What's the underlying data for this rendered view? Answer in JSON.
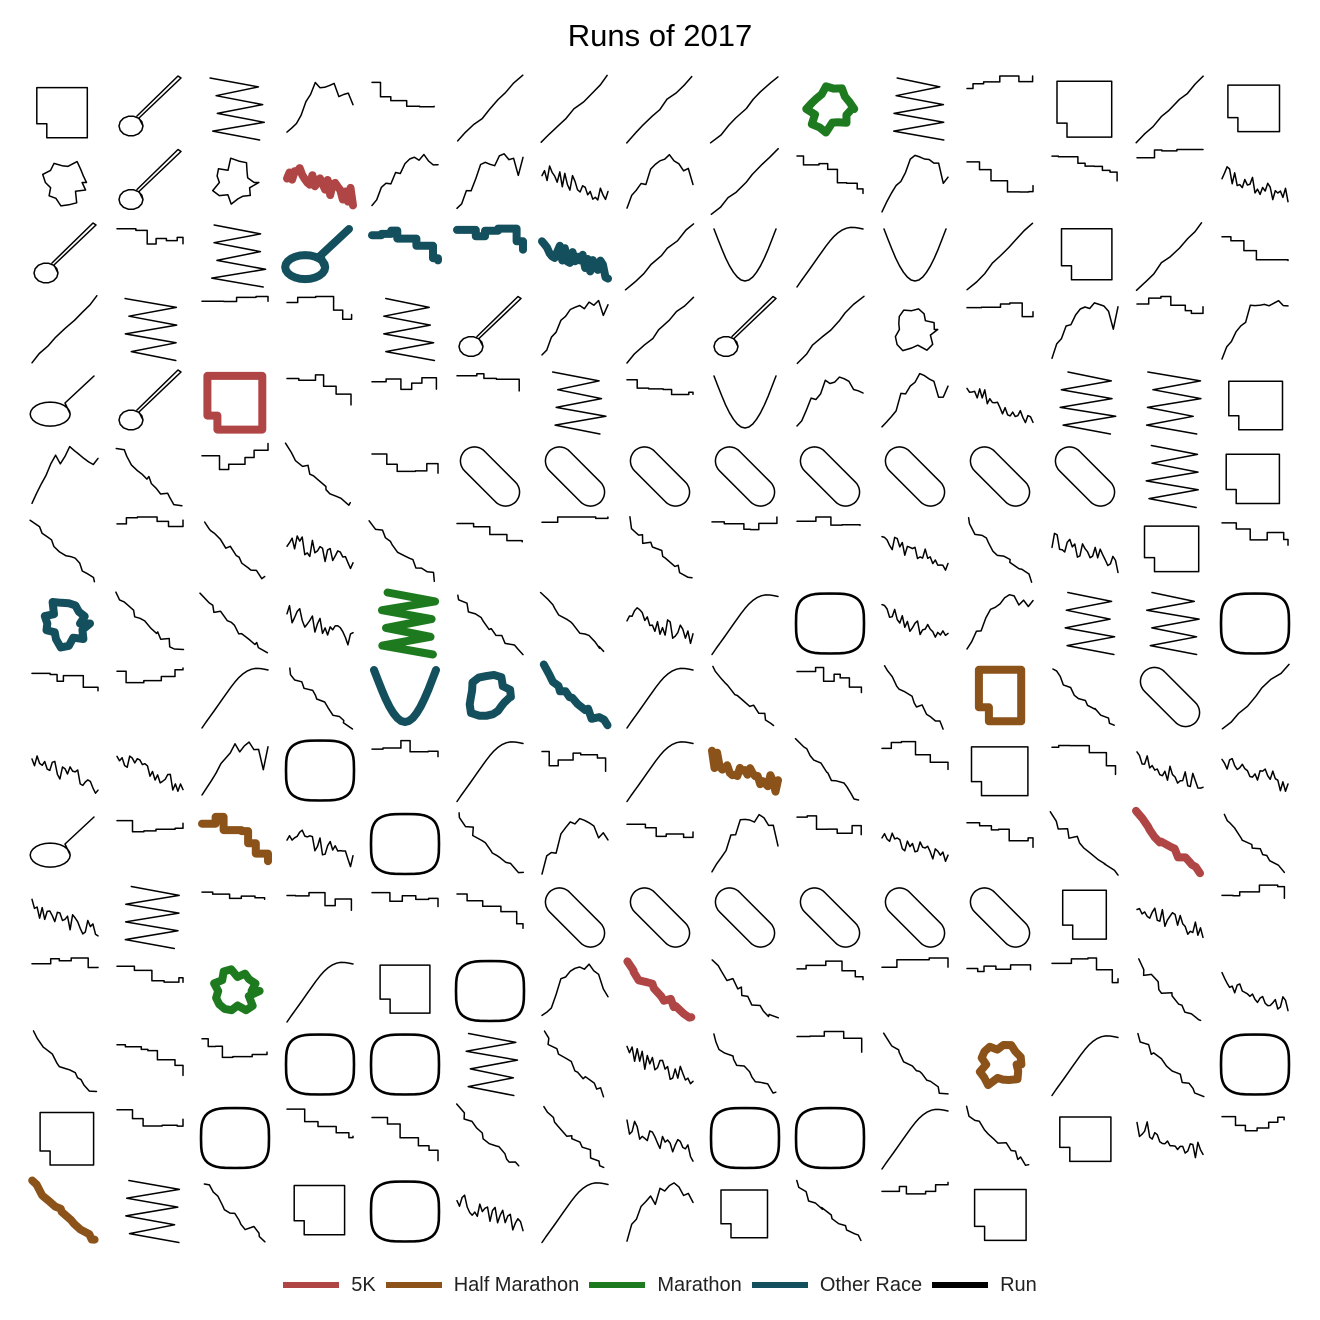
{
  "chart_data": {
    "type": "small-multiples",
    "title": "Runs of 2017",
    "grid": false,
    "legend_position": "bottom",
    "legend": [
      {
        "name": "5K",
        "color": "#b04545"
      },
      {
        "name": "Half Marathon",
        "color": "#8b5219"
      },
      {
        "name": "Marathon",
        "color": "#1e7a1e"
      },
      {
        "name": "Other Race",
        "color": "#134f5c"
      },
      {
        "name": "Run",
        "color": "#000000"
      }
    ],
    "columns": 15,
    "rows": 16,
    "runs": [
      {
        "category": "Run",
        "shape": "box"
      },
      {
        "category": "Run",
        "shape": "lollipop"
      },
      {
        "category": "Run",
        "shape": "zigzag"
      },
      {
        "category": "Run",
        "shape": "hill"
      },
      {
        "category": "Run",
        "shape": "stairs"
      },
      {
        "category": "Run",
        "shape": "line"
      },
      {
        "category": "Run",
        "shape": "line"
      },
      {
        "category": "Run",
        "shape": "line"
      },
      {
        "category": "Run",
        "shape": "line"
      },
      {
        "category": "Marathon",
        "shape": "blob"
      },
      {
        "category": "Run",
        "shape": "zigzag"
      },
      {
        "category": "Run",
        "shape": "stairs"
      },
      {
        "category": "Run",
        "shape": "box"
      },
      {
        "category": "Run",
        "shape": "line"
      },
      {
        "category": "Run",
        "shape": "box"
      },
      {
        "category": "Run",
        "shape": "blob"
      },
      {
        "category": "Run",
        "shape": "lollipop"
      },
      {
        "category": "Run",
        "shape": "blob"
      },
      {
        "category": "5K",
        "shape": "wiggle"
      },
      {
        "category": "Run",
        "shape": "hill"
      },
      {
        "category": "Run",
        "shape": "hill"
      },
      {
        "category": "Run",
        "shape": "wiggle"
      },
      {
        "category": "Run",
        "shape": "hill"
      },
      {
        "category": "Run",
        "shape": "line"
      },
      {
        "category": "Run",
        "shape": "stairs"
      },
      {
        "category": "Run",
        "shape": "hill"
      },
      {
        "category": "Run",
        "shape": "stairs"
      },
      {
        "category": "Run",
        "shape": "stairs"
      },
      {
        "category": "Run",
        "shape": "stairs"
      },
      {
        "category": "Run",
        "shape": "wiggle"
      },
      {
        "category": "Run",
        "shape": "lollipop"
      },
      {
        "category": "Run",
        "shape": "stairs"
      },
      {
        "category": "Run",
        "shape": "zigzag"
      },
      {
        "category": "Other Race",
        "shape": "loop"
      },
      {
        "category": "Other Race",
        "shape": "stairs"
      },
      {
        "category": "Other Race",
        "shape": "stairs"
      },
      {
        "category": "Other Race",
        "shape": "wiggle"
      },
      {
        "category": "Run",
        "shape": "line"
      },
      {
        "category": "Run",
        "shape": "arc"
      },
      {
        "category": "Run",
        "shape": "curve"
      },
      {
        "category": "Run",
        "shape": "arc"
      },
      {
        "category": "Run",
        "shape": "line"
      },
      {
        "category": "Run",
        "shape": "box"
      },
      {
        "category": "Run",
        "shape": "line"
      },
      {
        "category": "Run",
        "shape": "stairs"
      },
      {
        "category": "Run",
        "shape": "line"
      },
      {
        "category": "Run",
        "shape": "zigzag"
      },
      {
        "category": "Run",
        "shape": "stairs"
      },
      {
        "category": "Run",
        "shape": "stairs"
      },
      {
        "category": "Run",
        "shape": "zigzag"
      },
      {
        "category": "Run",
        "shape": "lollipop"
      },
      {
        "category": "Run",
        "shape": "hill"
      },
      {
        "category": "Run",
        "shape": "line"
      },
      {
        "category": "Run",
        "shape": "lollipop"
      },
      {
        "category": "Run",
        "shape": "line"
      },
      {
        "category": "Run",
        "shape": "blob"
      },
      {
        "category": "Run",
        "shape": "stairs"
      },
      {
        "category": "Run",
        "shape": "hill"
      },
      {
        "category": "Run",
        "shape": "stairs"
      },
      {
        "category": "Run",
        "shape": "hill"
      },
      {
        "category": "Run",
        "shape": "loop"
      },
      {
        "category": "Run",
        "shape": "lollipop"
      },
      {
        "category": "5K",
        "shape": "box"
      },
      {
        "category": "Run",
        "shape": "stairs"
      },
      {
        "category": "Run",
        "shape": "stairs"
      },
      {
        "category": "Run",
        "shape": "stairs"
      },
      {
        "category": "Run",
        "shape": "zigzag"
      },
      {
        "category": "Run",
        "shape": "stairs"
      },
      {
        "category": "Run",
        "shape": "arc"
      },
      {
        "category": "Run",
        "shape": "hill"
      },
      {
        "category": "Run",
        "shape": "hill"
      },
      {
        "category": "Run",
        "shape": "wiggle"
      },
      {
        "category": "Run",
        "shape": "zigzag"
      },
      {
        "category": "Run",
        "shape": "zigzag"
      },
      {
        "category": "Run",
        "shape": "box"
      },
      {
        "category": "Run",
        "shape": "hill"
      },
      {
        "category": "Run",
        "shape": "descent"
      },
      {
        "category": "Run",
        "shape": "stairs"
      },
      {
        "category": "Run",
        "shape": "descent"
      },
      {
        "category": "Run",
        "shape": "stairs"
      },
      {
        "category": "Run",
        "shape": "stadium"
      },
      {
        "category": "Run",
        "shape": "stadium"
      },
      {
        "category": "Run",
        "shape": "stadium"
      },
      {
        "category": "Run",
        "shape": "stadium"
      },
      {
        "category": "Run",
        "shape": "stadium"
      },
      {
        "category": "Run",
        "shape": "stadium"
      },
      {
        "category": "Run",
        "shape": "stadium"
      },
      {
        "category": "Run",
        "shape": "stadium"
      },
      {
        "category": "Run",
        "shape": "zigzag"
      },
      {
        "category": "Run",
        "shape": "box"
      },
      {
        "category": "Run",
        "shape": "descent"
      },
      {
        "category": "Run",
        "shape": "stairs"
      },
      {
        "category": "Run",
        "shape": "descent"
      },
      {
        "category": "Run",
        "shape": "wiggle"
      },
      {
        "category": "Run",
        "shape": "descent"
      },
      {
        "category": "Run",
        "shape": "stairs"
      },
      {
        "category": "Run",
        "shape": "stairs"
      },
      {
        "category": "Run",
        "shape": "descent"
      },
      {
        "category": "Run",
        "shape": "stairs"
      },
      {
        "category": "Run",
        "shape": "stairs"
      },
      {
        "category": "Run",
        "shape": "wiggle"
      },
      {
        "category": "Run",
        "shape": "descent"
      },
      {
        "category": "Run",
        "shape": "wiggle"
      },
      {
        "category": "Run",
        "shape": "box"
      },
      {
        "category": "Run",
        "shape": "stairs"
      },
      {
        "category": "Other Race",
        "shape": "blob"
      },
      {
        "category": "Run",
        "shape": "descent"
      },
      {
        "category": "Run",
        "shape": "descent"
      },
      {
        "category": "Run",
        "shape": "wiggle"
      },
      {
        "category": "Marathon",
        "shape": "zigzag"
      },
      {
        "category": "Run",
        "shape": "descent"
      },
      {
        "category": "Run",
        "shape": "descent"
      },
      {
        "category": "Run",
        "shape": "wiggle"
      },
      {
        "category": "Run",
        "shape": "curve"
      },
      {
        "category": "Run",
        "shape": "track"
      },
      {
        "category": "Run",
        "shape": "wiggle"
      },
      {
        "category": "Run",
        "shape": "hill"
      },
      {
        "category": "Run",
        "shape": "zigzag"
      },
      {
        "category": "Run",
        "shape": "zigzag"
      },
      {
        "category": "Run",
        "shape": "track"
      },
      {
        "category": "Run",
        "shape": "stairs"
      },
      {
        "category": "Run",
        "shape": "stairs"
      },
      {
        "category": "Run",
        "shape": "curve"
      },
      {
        "category": "Run",
        "shape": "descent"
      },
      {
        "category": "Other Race",
        "shape": "arc"
      },
      {
        "category": "Other Race",
        "shape": "blob"
      },
      {
        "category": "Other Race",
        "shape": "descent"
      },
      {
        "category": "Run",
        "shape": "curve"
      },
      {
        "category": "Run",
        "shape": "descent"
      },
      {
        "category": "Run",
        "shape": "stairs"
      },
      {
        "category": "Run",
        "shape": "descent"
      },
      {
        "category": "Half Marathon",
        "shape": "box"
      },
      {
        "category": "Run",
        "shape": "descent"
      },
      {
        "category": "Run",
        "shape": "stadium"
      },
      {
        "category": "Run",
        "shape": "line"
      },
      {
        "category": "Run",
        "shape": "wiggle"
      },
      {
        "category": "Run",
        "shape": "wiggle"
      },
      {
        "category": "Run",
        "shape": "hill"
      },
      {
        "category": "Run",
        "shape": "track"
      },
      {
        "category": "Run",
        "shape": "stairs"
      },
      {
        "category": "Run",
        "shape": "curve"
      },
      {
        "category": "Run",
        "shape": "stairs"
      },
      {
        "category": "Run",
        "shape": "curve"
      },
      {
        "category": "Half Marathon",
        "shape": "wiggle"
      },
      {
        "category": "Run",
        "shape": "descent"
      },
      {
        "category": "Run",
        "shape": "stairs"
      },
      {
        "category": "Run",
        "shape": "box"
      },
      {
        "category": "Run",
        "shape": "stairs"
      },
      {
        "category": "Run",
        "shape": "wiggle"
      },
      {
        "category": "Run",
        "shape": "wiggle"
      },
      {
        "category": "Run",
        "shape": "loop"
      },
      {
        "category": "Run",
        "shape": "stairs"
      },
      {
        "category": "Half Marathon",
        "shape": "stairs"
      },
      {
        "category": "Run",
        "shape": "wiggle"
      },
      {
        "category": "Run",
        "shape": "track"
      },
      {
        "category": "Run",
        "shape": "descent"
      },
      {
        "category": "Run",
        "shape": "hill"
      },
      {
        "category": "Run",
        "shape": "stairs"
      },
      {
        "category": "Run",
        "shape": "hill"
      },
      {
        "category": "Run",
        "shape": "stairs"
      },
      {
        "category": "Run",
        "shape": "wiggle"
      },
      {
        "category": "Run",
        "shape": "stairs"
      },
      {
        "category": "Run",
        "shape": "descent"
      },
      {
        "category": "5K",
        "shape": "descent"
      },
      {
        "category": "Run",
        "shape": "descent"
      },
      {
        "category": "Run",
        "shape": "wiggle"
      },
      {
        "category": "Run",
        "shape": "zigzag"
      },
      {
        "category": "Run",
        "shape": "stairs"
      },
      {
        "category": "Run",
        "shape": "stairs"
      },
      {
        "category": "Run",
        "shape": "stairs"
      },
      {
        "category": "Run",
        "shape": "stairs"
      },
      {
        "category": "Run",
        "shape": "stadium"
      },
      {
        "category": "Run",
        "shape": "stadium"
      },
      {
        "category": "Run",
        "shape": "stadium"
      },
      {
        "category": "Run",
        "shape": "stadium"
      },
      {
        "category": "Run",
        "shape": "stadium"
      },
      {
        "category": "Run",
        "shape": "stadium"
      },
      {
        "category": "Run",
        "shape": "box"
      },
      {
        "category": "Run",
        "shape": "wiggle"
      },
      {
        "category": "Run",
        "shape": "stairs"
      },
      {
        "category": "Run",
        "shape": "stairs"
      },
      {
        "category": "Run",
        "shape": "stairs"
      },
      {
        "category": "Marathon",
        "shape": "blob"
      },
      {
        "category": "Run",
        "shape": "curve"
      },
      {
        "category": "Run",
        "shape": "box"
      },
      {
        "category": "Run",
        "shape": "track"
      },
      {
        "category": "Run",
        "shape": "hill"
      },
      {
        "category": "5K",
        "shape": "descent"
      },
      {
        "category": "Run",
        "shape": "descent"
      },
      {
        "category": "Run",
        "shape": "stairs"
      },
      {
        "category": "Run",
        "shape": "stairs"
      },
      {
        "category": "Run",
        "shape": "stairs"
      },
      {
        "category": "Run",
        "shape": "stairs"
      },
      {
        "category": "Run",
        "shape": "descent"
      },
      {
        "category": "Run",
        "shape": "wiggle"
      },
      {
        "category": "Run",
        "shape": "descent"
      },
      {
        "category": "Run",
        "shape": "stairs"
      },
      {
        "category": "Run",
        "shape": "stairs"
      },
      {
        "category": "Run",
        "shape": "track"
      },
      {
        "category": "Run",
        "shape": "track"
      },
      {
        "category": "Run",
        "shape": "zigzag"
      },
      {
        "category": "Run",
        "shape": "descent"
      },
      {
        "category": "Run",
        "shape": "wiggle"
      },
      {
        "category": "Run",
        "shape": "descent"
      },
      {
        "category": "Run",
        "shape": "stairs"
      },
      {
        "category": "Run",
        "shape": "descent"
      },
      {
        "category": "Half Marathon",
        "shape": "blob"
      },
      {
        "category": "Run",
        "shape": "curve"
      },
      {
        "category": "Run",
        "shape": "descent"
      },
      {
        "category": "Run",
        "shape": "track"
      },
      {
        "category": "Run",
        "shape": "box"
      },
      {
        "category": "Run",
        "shape": "stairs"
      },
      {
        "category": "Run",
        "shape": "track"
      },
      {
        "category": "Run",
        "shape": "stairs"
      },
      {
        "category": "Run",
        "shape": "stairs"
      },
      {
        "category": "Run",
        "shape": "descent"
      },
      {
        "category": "Run",
        "shape": "descent"
      },
      {
        "category": "Run",
        "shape": "wiggle"
      },
      {
        "category": "Run",
        "shape": "track"
      },
      {
        "category": "Run",
        "shape": "track"
      },
      {
        "category": "Run",
        "shape": "curve"
      },
      {
        "category": "Run",
        "shape": "descent"
      },
      {
        "category": "Run",
        "shape": "box"
      },
      {
        "category": "Run",
        "shape": "wiggle"
      },
      {
        "category": "Run",
        "shape": "stairs"
      },
      {
        "category": "Half Marathon",
        "shape": "descent"
      },
      {
        "category": "Run",
        "shape": "zigzag"
      },
      {
        "category": "Run",
        "shape": "descent"
      },
      {
        "category": "Run",
        "shape": "box"
      },
      {
        "category": "Run",
        "shape": "track"
      },
      {
        "category": "Run",
        "shape": "wiggle"
      },
      {
        "category": "Run",
        "shape": "curve"
      },
      {
        "category": "Run",
        "shape": "hill"
      },
      {
        "category": "Run",
        "shape": "box"
      },
      {
        "category": "Run",
        "shape": "descent"
      },
      {
        "category": "Run",
        "shape": "stairs"
      },
      {
        "category": "Run",
        "shape": "box"
      }
    ]
  }
}
